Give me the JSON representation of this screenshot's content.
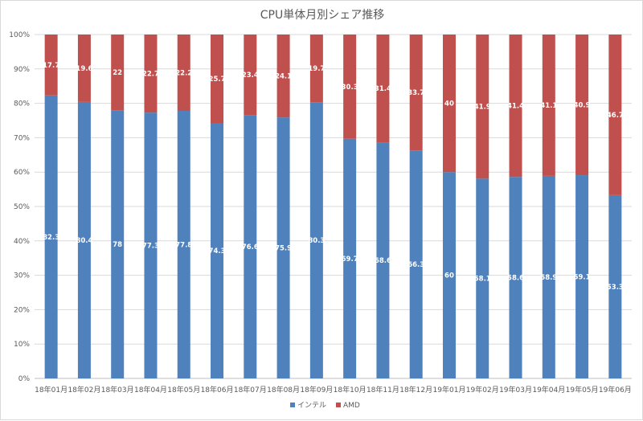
{
  "chart_data": {
    "type": "bar",
    "stacked": true,
    "title": "CPU単体月別シェア推移",
    "categories": [
      "18年01月",
      "18年02月",
      "18年03月",
      "18年04月",
      "18年05月",
      "18年06月",
      "18年07月",
      "18年08月",
      "18年09月",
      "18年10月",
      "18年11月",
      "18年12月",
      "19年01月",
      "19年02月",
      "19年03月",
      "19年04月",
      "19年05月",
      "19年06月"
    ],
    "series": [
      {
        "name": "インテル",
        "color": "#4f81bd",
        "values": [
          82.3,
          80.4,
          78,
          77.3,
          77.8,
          74.3,
          76.6,
          75.9,
          80.3,
          69.7,
          68.6,
          66.3,
          60,
          58.1,
          58.6,
          58.9,
          59.1,
          53.3
        ]
      },
      {
        "name": "AMD",
        "color": "#c0504d",
        "values": [
          17.7,
          19.6,
          22,
          22.7,
          22.2,
          25.7,
          23.4,
          24.1,
          19.7,
          30.3,
          31.4,
          33.7,
          40,
          41.9,
          41.4,
          41.1,
          40.9,
          46.7
        ]
      }
    ],
    "yticks": [
      "0%",
      "10%",
      "20%",
      "30%",
      "40%",
      "50%",
      "60%",
      "70%",
      "80%",
      "90%",
      "100%"
    ],
    "ylim": [
      0,
      100
    ],
    "grid": true,
    "legend_position": "bottom"
  }
}
